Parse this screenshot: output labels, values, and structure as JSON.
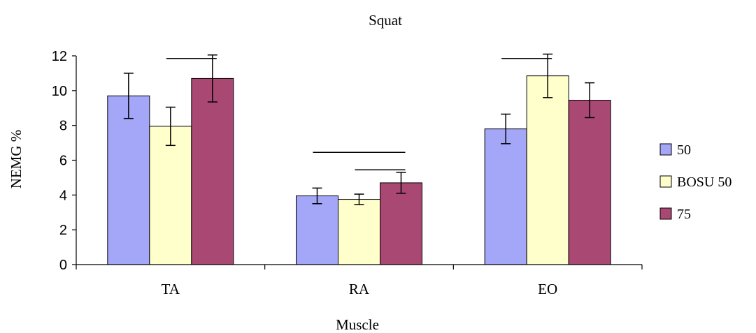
{
  "chart_data": {
    "type": "bar",
    "title": "Squat",
    "xlabel": "Muscle",
    "ylabel": "NEMG %",
    "ylim": [
      0,
      12
    ],
    "yticks": [
      0,
      2,
      4,
      6,
      8,
      10,
      12
    ],
    "grid": false,
    "legend_position": "right",
    "categories": [
      "TA",
      "RA",
      "EO"
    ],
    "series": [
      {
        "name": "50",
        "color": "#A4A6F8",
        "values": [
          9.7,
          3.95,
          7.8
        ],
        "error": [
          1.3,
          0.45,
          0.85
        ]
      },
      {
        "name": "BOSU 50",
        "color": "#FFFFCC",
        "values": [
          7.95,
          3.75,
          10.85
        ],
        "error": [
          1.1,
          0.3,
          1.25
        ]
      },
      {
        "name": "75",
        "color": "#A84873",
        "values": [
          10.7,
          4.7,
          9.45
        ],
        "error": [
          1.35,
          0.6,
          1.0
        ]
      }
    ],
    "significance_lines": [
      {
        "category": "TA",
        "from_series": "BOSU 50",
        "to_series": "75",
        "y": 11.85
      },
      {
        "category": "RA",
        "from_series": "50",
        "to_series": "75",
        "y": 6.45
      },
      {
        "category": "RA",
        "from_series": "BOSU 50",
        "to_series": "75",
        "y": 5.45
      },
      {
        "category": "EO",
        "from_series": "50",
        "to_series": "BOSU 50",
        "y": 11.85
      }
    ]
  }
}
